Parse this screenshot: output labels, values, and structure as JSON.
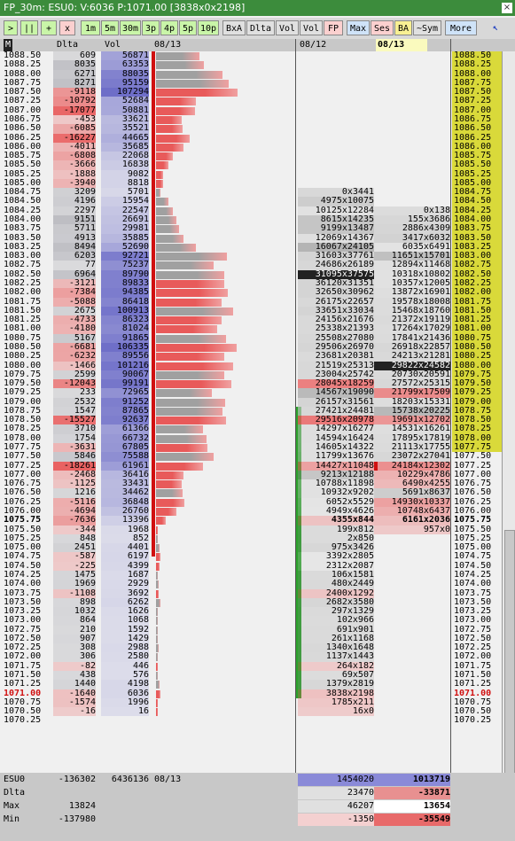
{
  "window": {
    "title": "FP_30m: ESU0: V:6036 P:1071.00 [3838x0x2198]",
    "close_glyph": "×"
  },
  "toolbar": {
    "play": ">",
    "pause": "||",
    "plus": "+",
    "close": "x",
    "intervals": [
      "1m",
      "5m",
      "30m",
      "3p",
      "4p",
      "5p",
      "10p"
    ],
    "modes": [
      "BxA",
      "Dlta",
      "Vol",
      "Vol",
      "FP"
    ],
    "views": [
      "Max",
      "Ses",
      "BA",
      "~Sym",
      "More"
    ]
  },
  "header": {
    "m": "M",
    "delta": "Dlta",
    "volume": "Vol",
    "date1": "08/13",
    "date2": "08/12",
    "date3": "08/13"
  },
  "colors": {
    "up": "#e85a5a",
    "down": "#8a8ad8",
    "price_hl": "#d9d93a",
    "marker": "#2ca02c"
  },
  "rows": [
    {
      "p": "1088.50",
      "d": "609",
      "v": "56871",
      "a": "",
      "b": "",
      "y": 1
    },
    {
      "p": "1088.25",
      "d": "8035",
      "v": "63353",
      "a": "",
      "b": "",
      "y": 1
    },
    {
      "p": "1088.00",
      "d": "6271",
      "v": "88035",
      "a": "",
      "b": "",
      "y": 1
    },
    {
      "p": "1087.75",
      "d": "8271",
      "v": "95159",
      "a": "",
      "b": "",
      "y": 1
    },
    {
      "p": "1087.50",
      "d": "-9118",
      "v": "107294",
      "a": "",
      "b": "",
      "y": 1
    },
    {
      "p": "1087.25",
      "d": "-10792",
      "v": "52684",
      "a": "",
      "b": "",
      "y": 1
    },
    {
      "p": "1087.00",
      "d": "-17077",
      "v": "50881",
      "a": "",
      "b": "",
      "y": 1
    },
    {
      "p": "1086.75",
      "d": "-453",
      "v": "33621",
      "a": "",
      "b": "",
      "y": 1
    },
    {
      "p": "1086.50",
      "d": "-6085",
      "v": "35521",
      "a": "",
      "b": "",
      "y": 1
    },
    {
      "p": "1086.25",
      "d": "-16227",
      "v": "44665",
      "a": "",
      "b": "",
      "y": 1
    },
    {
      "p": "1086.00",
      "d": "-4011",
      "v": "35685",
      "a": "",
      "b": "",
      "y": 1
    },
    {
      "p": "1085.75",
      "d": "-6808",
      "v": "22068",
      "a": "",
      "b": "",
      "y": 1
    },
    {
      "p": "1085.50",
      "d": "-3666",
      "v": "16838",
      "a": "",
      "b": "",
      "y": 1
    },
    {
      "p": "1085.25",
      "d": "-1888",
      "v": "9082",
      "a": "",
      "b": "",
      "y": 1
    },
    {
      "p": "1085.00",
      "d": "-3940",
      "v": "8818",
      "a": "",
      "b": "",
      "y": 1
    },
    {
      "p": "1084.75",
      "d": "3209",
      "v": "5701",
      "a": "0x3441",
      "b": "",
      "y": 1
    },
    {
      "p": "1084.50",
      "d": "4196",
      "v": "15954",
      "a": "4975x10075",
      "b": "",
      "y": 1
    },
    {
      "p": "1084.25",
      "d": "2297",
      "v": "22547",
      "a": "10125x12284",
      "b": "0x138",
      "y": 1
    },
    {
      "p": "1084.00",
      "d": "9151",
      "v": "26691",
      "a": "8615x14235",
      "b": "155x3686",
      "y": 1
    },
    {
      "p": "1083.75",
      "d": "5711",
      "v": "29981",
      "a": "9199x13487",
      "b": "2886x4309",
      "y": 1
    },
    {
      "p": "1083.50",
      "d": "4913",
      "v": "35885",
      "a": "12069x14367",
      "b": "3417x6032",
      "y": 1
    },
    {
      "p": "1083.25",
      "d": "8494",
      "v": "52690",
      "a": "16067x24105",
      "b": "6035x6491",
      "y": 1
    },
    {
      "p": "1083.00",
      "d": "6203",
      "v": "92721",
      "a": "31603x37761",
      "b": "11651x15701",
      "y": 1
    },
    {
      "p": "1082.75",
      "d": "77",
      "v": "75237",
      "a": "24686x26189",
      "b": "12894x11468",
      "y": 1
    },
    {
      "p": "1082.50",
      "d": "6964",
      "v": "89790",
      "a": "31095x37575",
      "b": "10318x10802",
      "y": 1
    },
    {
      "p": "1082.25",
      "d": "-3121",
      "v": "89833",
      "a": "36120x31351",
      "b": "10357x12005",
      "y": 1
    },
    {
      "p": "1082.00",
      "d": "-7384",
      "v": "94385",
      "a": "32650x30962",
      "b": "13872x16901",
      "y": 1
    },
    {
      "p": "1081.75",
      "d": "-5088",
      "v": "86418",
      "a": "26175x22657",
      "b": "19578x18008",
      "y": 1
    },
    {
      "p": "1081.50",
      "d": "2675",
      "v": "100913",
      "a": "33651x33034",
      "b": "15468x18760",
      "y": 1
    },
    {
      "p": "1081.25",
      "d": "-4733",
      "v": "86323",
      "a": "24156x21676",
      "b": "21372x19119",
      "y": 1
    },
    {
      "p": "1081.00",
      "d": "-4180",
      "v": "81024",
      "a": "25338x21393",
      "b": "17264x17029",
      "y": 1
    },
    {
      "p": "1080.75",
      "d": "5167",
      "v": "91865",
      "a": "25508x27080",
      "b": "17841x21436",
      "y": 1
    },
    {
      "p": "1080.50",
      "d": "-6681",
      "v": "106335",
      "a": "29506x26970",
      "b": "26918x22857",
      "y": 1
    },
    {
      "p": "1080.25",
      "d": "-6232",
      "v": "89556",
      "a": "23681x20381",
      "b": "24213x21281",
      "y": 1
    },
    {
      "p": "1080.00",
      "d": "-1466",
      "v": "101216",
      "a": "21519x25313",
      "b": "29822x24582",
      "y": 1
    },
    {
      "p": "1079.75",
      "d": "2599",
      "v": "90067",
      "a": "23004x25742",
      "b": "20730x20591",
      "y": 1
    },
    {
      "p": "1079.50",
      "d": "-12043",
      "v": "99191",
      "a": "28045x18259",
      "b": "27572x25315",
      "y": 1
    },
    {
      "p": "1079.25",
      "d": "233",
      "v": "72965",
      "a": "14567x19090",
      "b": "21799x17509",
      "y": 1
    },
    {
      "p": "1079.00",
      "d": "2532",
      "v": "91252",
      "a": "26157x31561",
      "b": "18203x15331",
      "y": 1
    },
    {
      "p": "1078.75",
      "d": "1547",
      "v": "87865",
      "a": "27421x24481",
      "b": "15738x20225",
      "y": 1
    },
    {
      "p": "1078.50",
      "d": "-15527",
      "v": "92637",
      "a": "29516x20978",
      "b": "19691x12702",
      "y": 1
    },
    {
      "p": "1078.25",
      "d": "3710",
      "v": "61366",
      "a": "14297x16277",
      "b": "14531x16261",
      "y": 1
    },
    {
      "p": "1078.00",
      "d": "1754",
      "v": "66732",
      "a": "14594x16424",
      "b": "17895x17819",
      "y": 1
    },
    {
      "p": "1077.75",
      "d": "-3631",
      "v": "67805",
      "a": "14605x14322",
      "b": "21113x17755",
      "y": 1
    },
    {
      "p": "1077.50",
      "d": "5846",
      "v": "75588",
      "a": "11799x13676",
      "b": "23072x27041",
      "y": 0
    },
    {
      "p": "1077.25",
      "d": "-18261",
      "v": "61961",
      "a": "14427x11048",
      "b": "24184x12302",
      "y": 0
    },
    {
      "p": "1077.00",
      "d": "-2468",
      "v": "36416",
      "a": "9213x12188",
      "b": "10229x4786",
      "y": 0
    },
    {
      "p": "1076.75",
      "d": "-1125",
      "v": "33431",
      "a": "10788x11898",
      "b": "6490x4255",
      "y": 0
    },
    {
      "p": "1076.50",
      "d": "1216",
      "v": "34462",
      "a": "10932x9202",
      "b": "5691x8637",
      "y": 0
    },
    {
      "p": "1076.25",
      "d": "-5116",
      "v": "36848",
      "a": "6052x5529",
      "b": "14930x10337",
      "y": 0
    },
    {
      "p": "1076.00",
      "d": "-4694",
      "v": "26760",
      "a": "4949x4626",
      "b": "10748x6437",
      "y": 0
    },
    {
      "p": "1075.75",
      "d": "-7636",
      "v": "13396",
      "a": "4355x844",
      "b": "6161x2036",
      "y": 0
    },
    {
      "p": "1075.50",
      "d": "-344",
      "v": "1968",
      "a": "199x812",
      "b": "957x0",
      "y": 0
    },
    {
      "p": "1075.25",
      "d": "848",
      "v": "852",
      "a": "2x850",
      "b": "",
      "y": 0
    },
    {
      "p": "1075.00",
      "d": "2451",
      "v": "4401",
      "a": "975x3426",
      "b": "",
      "y": 0
    },
    {
      "p": "1074.75",
      "d": "-587",
      "v": "6197",
      "a": "3392x2805",
      "b": "",
      "y": 0
    },
    {
      "p": "1074.50",
      "d": "-225",
      "v": "4399",
      "a": "2312x2087",
      "b": "",
      "y": 0
    },
    {
      "p": "1074.25",
      "d": "1475",
      "v": "1687",
      "a": "106x1581",
      "b": "",
      "y": 0
    },
    {
      "p": "1074.00",
      "d": "1969",
      "v": "2929",
      "a": "480x2449",
      "b": "",
      "y": 0
    },
    {
      "p": "1073.75",
      "d": "-1108",
      "v": "3692",
      "a": "2400x1292",
      "b": "",
      "y": 0
    },
    {
      "p": "1073.50",
      "d": "898",
      "v": "6262",
      "a": "2682x3580",
      "b": "",
      "y": 0
    },
    {
      "p": "1073.25",
      "d": "1032",
      "v": "1626",
      "a": "297x1329",
      "b": "",
      "y": 0
    },
    {
      "p": "1073.00",
      "d": "864",
      "v": "1068",
      "a": "102x966",
      "b": "",
      "y": 0
    },
    {
      "p": "1072.75",
      "d": "210",
      "v": "1592",
      "a": "691x901",
      "b": "",
      "y": 0
    },
    {
      "p": "1072.50",
      "d": "907",
      "v": "1429",
      "a": "261x1168",
      "b": "",
      "y": 0
    },
    {
      "p": "1072.25",
      "d": "308",
      "v": "2988",
      "a": "1340x1648",
      "b": "",
      "y": 0
    },
    {
      "p": "1072.00",
      "d": "306",
      "v": "2580",
      "a": "1137x1443",
      "b": "",
      "y": 0
    },
    {
      "p": "1071.75",
      "d": "-82",
      "v": "446",
      "a": "264x182",
      "b": "",
      "y": 0
    },
    {
      "p": "1071.50",
      "d": "438",
      "v": "576",
      "a": "69x507",
      "b": "",
      "y": 0
    },
    {
      "p": "1071.25",
      "d": "1440",
      "v": "4198",
      "a": "1379x2819",
      "b": "",
      "y": 0
    },
    {
      "p": "1071.00",
      "d": "-1640",
      "v": "6036",
      "a": "3838x2198",
      "b": "",
      "y": 0
    },
    {
      "p": "1070.75",
      "d": "-1574",
      "v": "1996",
      "a": "1785x211",
      "b": "",
      "y": 0
    },
    {
      "p": "1070.50",
      "d": "-16",
      "v": "16",
      "a": "16x0",
      "b": "",
      "y": 0
    },
    {
      "p": "1070.25",
      "d": "",
      "v": "",
      "a": "",
      "b": "",
      "y": 0
    }
  ],
  "summary": {
    "labels": [
      "ESU0",
      "Dlta",
      "Max",
      "Min"
    ],
    "esu_delta": "-136302",
    "esu_vol": "6436136",
    "esu_date": "08/13",
    "esu_prev": "1454020",
    "esu_cur": "1013719",
    "dlta_prev": "23470",
    "dlta_cur": "-33871",
    "max_delta": "13824",
    "max_prev": "46207",
    "max_cur": "13654",
    "min_delta": "-137980",
    "min_prev": "-1350",
    "min_cur": "-35549"
  }
}
